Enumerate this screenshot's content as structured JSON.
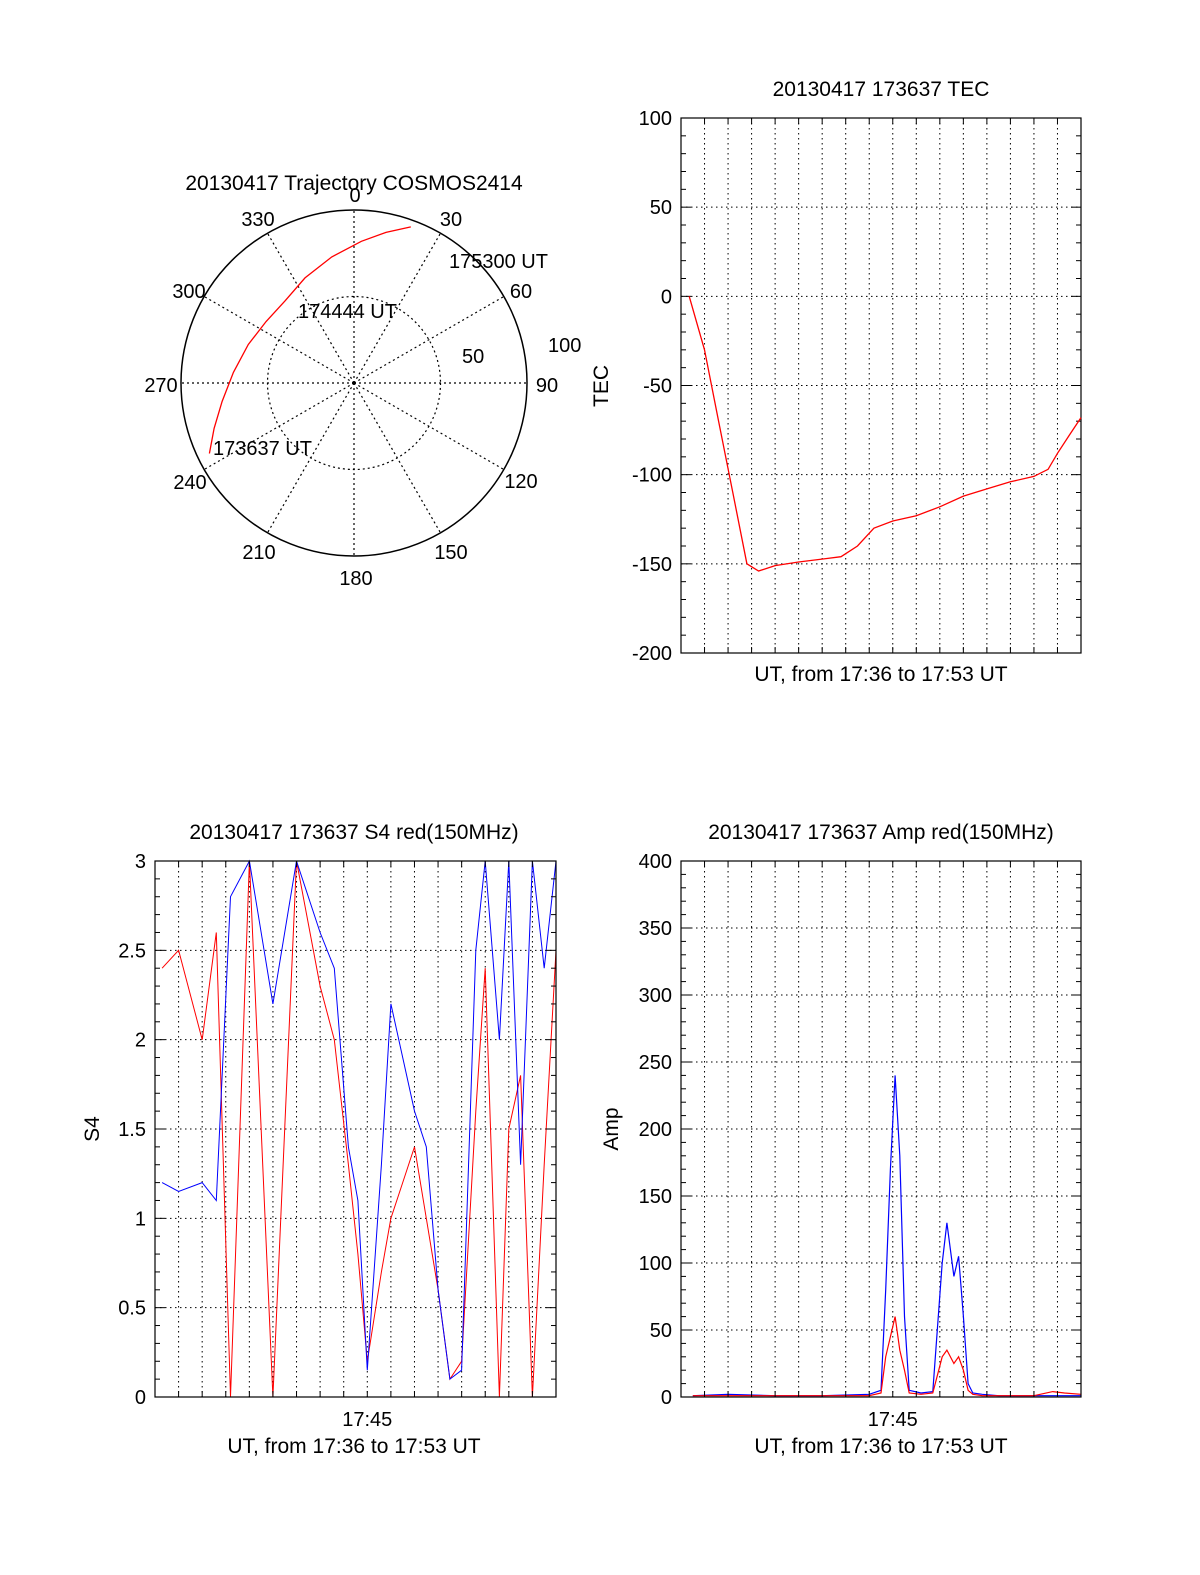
{
  "chart_data": [
    {
      "id": "trajectory",
      "type": "polar",
      "title": "20130417 Trajectory COSMOS2414",
      "azimuth_labels": [
        "0",
        "30",
        "60",
        "90",
        "120",
        "150",
        "180",
        "210",
        "240",
        "270",
        "300",
        "330"
      ],
      "radius_labels": [
        "50",
        "100"
      ],
      "radius_max": 100,
      "series": [
        {
          "color": "#ff0000",
          "points": [
            {
              "az": 244,
              "el": 7
            },
            {
              "az": 252,
              "el": 15
            },
            {
              "az": 262,
              "el": 23
            },
            {
              "az": 275,
              "el": 30
            },
            {
              "az": 290,
              "el": 35
            },
            {
              "az": 305,
              "el": 38
            },
            {
              "az": 320,
              "el": 38
            },
            {
              "az": 335,
              "el": 33
            },
            {
              "az": 350,
              "el": 26
            },
            {
              "az": 3,
              "el": 18
            },
            {
              "az": 12,
              "el": 11
            },
            {
              "az": 20,
              "el": 4
            }
          ]
        }
      ],
      "annotations": [
        {
          "text": "175300 UT",
          "az": 20,
          "el": 4
        },
        {
          "text": "174444 UT",
          "az": 353,
          "el": 55
        },
        {
          "text": "173637 UT",
          "az": 244,
          "el": 55
        }
      ]
    },
    {
      "id": "tec",
      "type": "line",
      "title": "20130417 173637 TEC",
      "xlabel": "UT, from 17:36 to 17:53 UT",
      "ylabel": "TEC",
      "xlim": [
        0,
        17
      ],
      "ylim": [
        -200,
        100
      ],
      "yticks": [
        -200,
        -150,
        -100,
        -50,
        0,
        50,
        100
      ],
      "series": [
        {
          "color": "#ff0000",
          "x": [
            0.35,
            1.0,
            1.6,
            2.2,
            2.8,
            3.3,
            4.0,
            5.0,
            6.2,
            6.8,
            7.5,
            8.2,
            9.0,
            10.0,
            11.0,
            12.0,
            13.0,
            14.0,
            15.0,
            15.6,
            16.0,
            16.5,
            17.0
          ],
          "y": [
            0,
            -30,
            -70,
            -110,
            -150,
            -154,
            -151,
            -149,
            -147,
            -146,
            -140,
            -130,
            -126,
            -123,
            -118,
            -112,
            -108,
            -104,
            -101,
            -97,
            -88,
            -78,
            -68
          ]
        }
      ]
    },
    {
      "id": "s4",
      "type": "line",
      "title": "20130417 173637 S4 red(150MHz)",
      "xlabel": "UT, from 17:36 to 17:53 UT",
      "ylabel": "S4",
      "xlim": [
        0,
        17
      ],
      "ylim": [
        0,
        3
      ],
      "yticks": [
        "0",
        "0.5",
        "1",
        "1.5",
        "2",
        "2.5",
        "3"
      ],
      "xticks": [
        {
          "value": 9,
          "label": "17:45"
        }
      ],
      "series": [
        {
          "color": "#ff0000",
          "x": [
            0.3,
            1.0,
            2.0,
            2.6,
            3.2,
            4.0,
            5.0,
            6.0,
            7.0,
            7.6,
            8.2,
            8.6,
            9.0,
            9.6,
            10.0,
            10.5,
            11.0,
            11.5,
            12.0,
            12.5,
            13.0,
            13.6,
            14.0,
            14.6,
            15.0,
            15.5,
            16.0,
            16.5,
            17.0
          ],
          "y": [
            2.4,
            2.5,
            2.0,
            2.6,
            0.0,
            3.0,
            0.0,
            3.0,
            2.3,
            2.0,
            1.3,
            0.8,
            0.2,
            0.7,
            1.0,
            1.2,
            1.4,
            1.0,
            0.6,
            0.1,
            0.2,
            1.6,
            2.4,
            0.0,
            1.5,
            1.8,
            0.0,
            1.3,
            2.5
          ]
        },
        {
          "color": "#0000ff",
          "x": [
            0.3,
            1.0,
            2.0,
            2.6,
            3.2,
            4.0,
            5.0,
            6.0,
            7.0,
            7.6,
            8.2,
            8.6,
            9.0,
            9.6,
            10.0,
            10.5,
            11.0,
            11.5,
            12.0,
            12.5,
            13.0,
            13.6,
            14.0,
            14.6,
            15.0,
            15.5,
            16.0,
            16.5,
            17.0
          ],
          "y": [
            1.2,
            1.15,
            1.2,
            1.1,
            2.8,
            3.0,
            2.2,
            3.0,
            2.6,
            2.4,
            1.4,
            1.1,
            0.15,
            1.3,
            2.2,
            1.9,
            1.6,
            1.4,
            0.6,
            0.1,
            0.15,
            2.5,
            3.0,
            2.0,
            3.0,
            1.3,
            3.0,
            2.4,
            3.0
          ]
        }
      ]
    },
    {
      "id": "amp",
      "type": "line",
      "title": "20130417 173637 Amp red(150MHz)",
      "xlabel": "UT, from 17:36 to 17:53 UT",
      "ylabel": "Amp",
      "xlim": [
        0,
        17
      ],
      "ylim": [
        0,
        400
      ],
      "yticks": [
        0,
        50,
        100,
        150,
        200,
        250,
        300,
        350,
        400
      ],
      "xticks": [
        {
          "value": 9,
          "label": "17:45"
        }
      ],
      "series": [
        {
          "color": "#0000ff",
          "x": [
            0.5,
            2.0,
            4.0,
            6.0,
            8.0,
            8.5,
            8.7,
            8.9,
            9.1,
            9.3,
            9.5,
            9.7,
            10.2,
            10.7,
            11.1,
            11.3,
            11.6,
            11.8,
            12.0,
            12.2,
            12.4,
            12.8,
            13.5,
            15.0,
            16.0,
            17.0
          ],
          "y": [
            1,
            2,
            1,
            1,
            2,
            5,
            80,
            170,
            240,
            180,
            60,
            5,
            3,
            4,
            100,
            130,
            90,
            105,
            60,
            10,
            3,
            2,
            1,
            1,
            1,
            1
          ]
        },
        {
          "color": "#ff0000",
          "x": [
            0.5,
            2.0,
            4.0,
            6.0,
            8.0,
            8.5,
            8.7,
            8.9,
            9.1,
            9.3,
            9.5,
            9.7,
            10.2,
            10.7,
            11.1,
            11.3,
            11.6,
            11.8,
            12.0,
            12.2,
            12.4,
            12.8,
            13.5,
            15.0,
            15.8,
            16.3,
            17.0
          ],
          "y": [
            1,
            1,
            1,
            1,
            1,
            3,
            30,
            45,
            60,
            35,
            20,
            3,
            2,
            3,
            30,
            35,
            25,
            30,
            20,
            5,
            2,
            1,
            1,
            1,
            4,
            3,
            2
          ]
        }
      ]
    }
  ]
}
